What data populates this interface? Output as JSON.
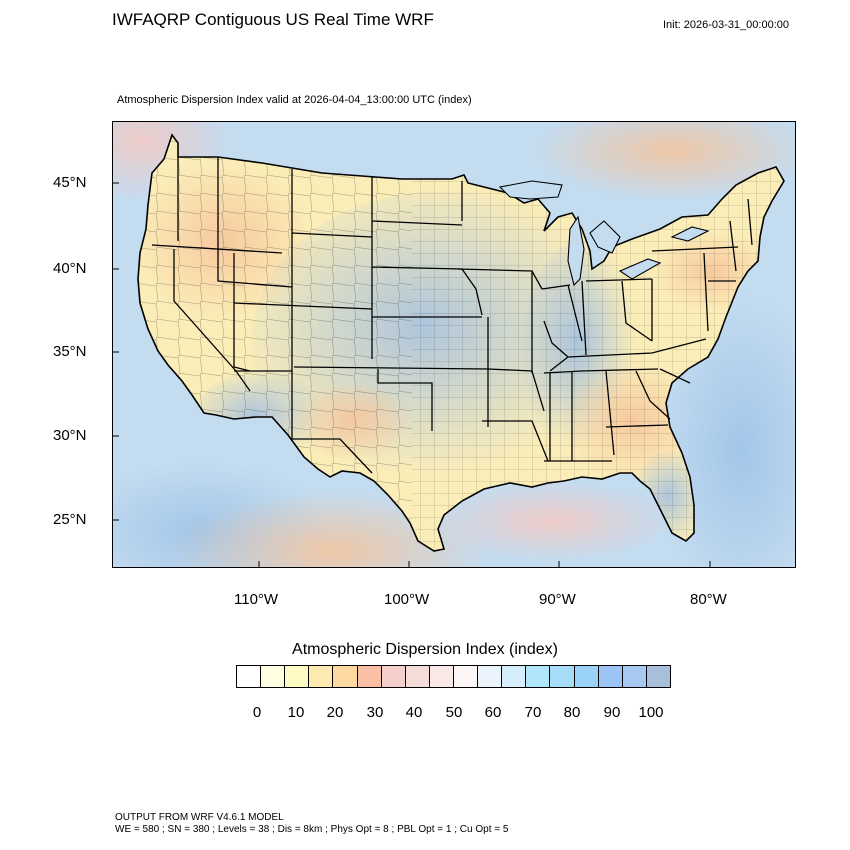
{
  "header": {
    "title": "IWFAQRP Contiguous US Real Time WRF",
    "init": "Init: 2026-03-31_00:00:00",
    "subtitle": "Atmospheric Dispersion Index valid at 2026-04-04_13:00:00 UTC   (index)"
  },
  "map": {
    "lat_labels": [
      "45°N",
      "40°N",
      "35°N",
      "30°N",
      "25°N"
    ],
    "lon_labels": [
      "110°W",
      "100°W",
      "90°W",
      "80°W"
    ],
    "colors": {
      "ocean": "#c4dcf0",
      "land_low": "#fbedb8",
      "land_high": "#a9c3de",
      "borders": "#000000"
    }
  },
  "colorbar": {
    "title": "Atmospheric Dispersion Index  (index)",
    "labels": [
      "0",
      "10",
      "20",
      "30",
      "40",
      "50",
      "60",
      "70",
      "80",
      "90",
      "100"
    ],
    "colors": [
      "#ffffff",
      "#fffde2",
      "#fdfbc3",
      "#fdeab0",
      "#fdd9a0",
      "#fbbfa6",
      "#f4cfcc",
      "#f6dcd9",
      "#fbe9e8",
      "#fdf6f7",
      "#ebf4fd",
      "#d5eefb",
      "#b1e6fa",
      "#a5dcf8",
      "#9ad3f7",
      "#9cc4f7",
      "#a7c8f1",
      "#a7bfdb"
    ]
  },
  "footer": {
    "line1": "OUTPUT FROM WRF V4.6.1 MODEL",
    "line2": "WE = 580 ; SN = 380 ; Levels = 38 ; Dis = 8km ; Phys Opt = 8 ; PBL Opt = 1 ; Cu Opt = 5"
  }
}
